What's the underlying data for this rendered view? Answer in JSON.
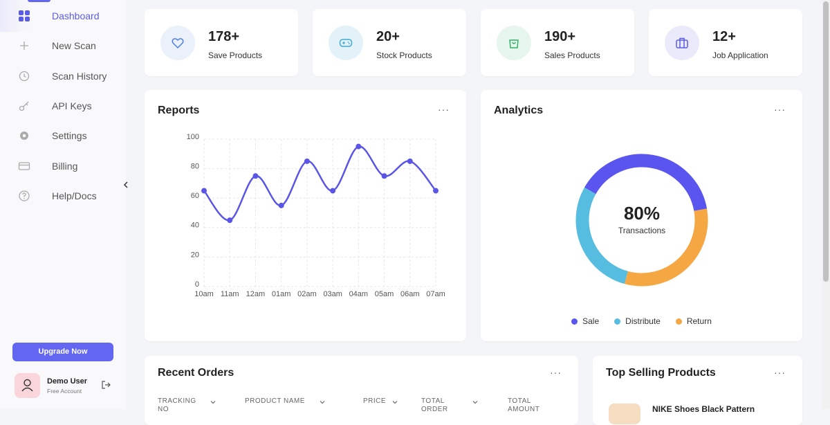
{
  "sidebar": {
    "nav": [
      "Dashboard",
      "New Scan",
      "Scan History",
      "API Keys",
      "Settings",
      "Billing",
      "Help/Docs"
    ],
    "upgrade": "Upgrade Now",
    "user": {
      "name": "Demo User",
      "plan": "Free Account"
    }
  },
  "stats": [
    {
      "value": "178+",
      "label": "Save Products"
    },
    {
      "value": "20+",
      "label": "Stock Products"
    },
    {
      "value": "190+",
      "label": "Sales Products"
    },
    {
      "value": "12+",
      "label": "Job Application"
    }
  ],
  "chart_data": [
    {
      "type": "line",
      "title": "Reports",
      "categories": [
        "10am",
        "11am",
        "12am",
        "01am",
        "02am",
        "03am",
        "04am",
        "05am",
        "06am",
        "07am"
      ],
      "values": [
        65,
        45,
        75,
        55,
        85,
        65,
        95,
        75,
        85,
        65
      ],
      "color": "#5b55e6",
      "ylim": [
        0,
        100
      ],
      "yticks": [
        0,
        20,
        40,
        60,
        80,
        100
      ],
      "grid": true
    },
    {
      "type": "donut",
      "title": "Analytics",
      "labels": [
        "Sale",
        "Distribute",
        "Return"
      ],
      "values": [
        39,
        29,
        32
      ],
      "colors": [
        "#5b55f0",
        "#56bde0",
        "#f5a744"
      ],
      "center_value": "80%",
      "center_label": "Transactions",
      "legend": "bottom"
    }
  ],
  "orders": {
    "title": "Recent Orders",
    "columns": [
      "TRACKING NO",
      "PRODUCT NAME",
      "PRICE",
      "TOTAL ORDER",
      "TOTAL AMOUNT"
    ]
  },
  "top_selling": {
    "title": "Top Selling Products",
    "items": [
      "NIKE Shoes Black Pattern"
    ]
  }
}
